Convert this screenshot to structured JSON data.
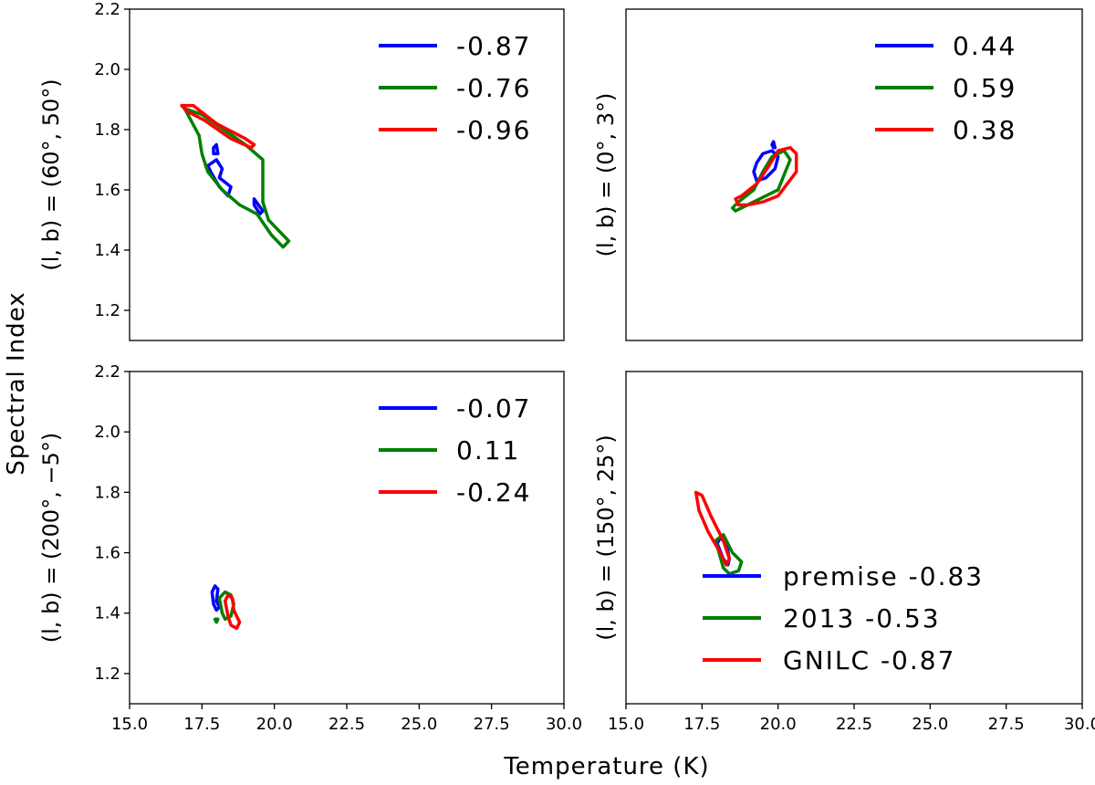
{
  "figure": {
    "xlabel": "Temperature (K)",
    "ylabel": "Spectral Index"
  },
  "colors": {
    "series_1": "#0000ff",
    "series_2": "#008000",
    "series_3": "#ff0000"
  },
  "chart_data": [
    {
      "type": "contour",
      "ylabel": "(l, b) = (60°, 50°)",
      "xlim": [
        15.0,
        30.0
      ],
      "ylim": [
        1.1,
        2.2
      ],
      "xticks": [],
      "yticks": [
        "1.2",
        "1.4",
        "1.6",
        "1.8",
        "2.0",
        "2.2"
      ],
      "legend_position": "top-right",
      "series": [
        {
          "name": "-0.87",
          "color": "#0000ff",
          "contours": [
            [
              [
                17.9,
                1.74
              ],
              [
                18.0,
                1.75
              ],
              [
                18.05,
                1.72
              ],
              [
                17.9,
                1.72
              ],
              [
                17.9,
                1.74
              ]
            ],
            [
              [
                17.7,
                1.68
              ],
              [
                18.0,
                1.7
              ],
              [
                18.2,
                1.67
              ],
              [
                18.1,
                1.64
              ],
              [
                18.5,
                1.61
              ],
              [
                18.4,
                1.58
              ],
              [
                18.1,
                1.61
              ],
              [
                17.8,
                1.66
              ],
              [
                17.7,
                1.68
              ]
            ],
            [
              [
                19.3,
                1.57
              ],
              [
                19.6,
                1.53
              ],
              [
                19.5,
                1.52
              ],
              [
                19.3,
                1.55
              ],
              [
                19.3,
                1.57
              ]
            ]
          ]
        },
        {
          "name": "-0.76",
          "color": "#008000",
          "contours": [
            [
              [
                16.9,
                1.87
              ],
              [
                17.5,
                1.85
              ],
              [
                19.0,
                1.75
              ],
              [
                19.6,
                1.7
              ],
              [
                19.6,
                1.56
              ],
              [
                19.8,
                1.5
              ],
              [
                20.5,
                1.43
              ],
              [
                20.3,
                1.41
              ],
              [
                19.9,
                1.45
              ],
              [
                19.4,
                1.52
              ],
              [
                18.8,
                1.55
              ],
              [
                18.2,
                1.6
              ],
              [
                17.7,
                1.66
              ],
              [
                17.5,
                1.72
              ],
              [
                17.4,
                1.78
              ],
              [
                16.9,
                1.87
              ]
            ]
          ]
        },
        {
          "name": "-0.96",
          "color": "#ff0000",
          "contours": [
            [
              [
                16.8,
                1.88
              ],
              [
                17.2,
                1.88
              ],
              [
                18.0,
                1.82
              ],
              [
                19.0,
                1.77
              ],
              [
                19.3,
                1.75
              ],
              [
                19.2,
                1.74
              ],
              [
                18.5,
                1.77
              ],
              [
                17.6,
                1.83
              ],
              [
                17.0,
                1.86
              ],
              [
                16.8,
                1.88
              ]
            ]
          ]
        }
      ]
    },
    {
      "type": "contour",
      "ylabel": "(l, b) = (0°, 3°)",
      "xlim": [
        15.0,
        30.0
      ],
      "ylim": [
        1.1,
        2.2
      ],
      "xticks": [],
      "yticks": [],
      "legend_position": "top-right",
      "series": [
        {
          "name": "0.44",
          "color": "#0000ff",
          "contours": [
            [
              [
                19.2,
                1.66
              ],
              [
                19.3,
                1.69
              ],
              [
                19.5,
                1.72
              ],
              [
                19.8,
                1.73
              ],
              [
                20.0,
                1.71
              ],
              [
                19.9,
                1.67
              ],
              [
                19.6,
                1.64
              ],
              [
                19.3,
                1.63
              ],
              [
                19.2,
                1.66
              ]
            ],
            [
              [
                19.8,
                1.75
              ],
              [
                19.85,
                1.76
              ],
              [
                19.9,
                1.74
              ],
              [
                19.85,
                1.74
              ],
              [
                19.8,
                1.75
              ]
            ]
          ]
        },
        {
          "name": "0.59",
          "color": "#008000",
          "contours": [
            [
              [
                18.5,
                1.54
              ],
              [
                18.7,
                1.56
              ],
              [
                19.2,
                1.6
              ],
              [
                19.5,
                1.66
              ],
              [
                19.8,
                1.71
              ],
              [
                20.2,
                1.73
              ],
              [
                20.4,
                1.7
              ],
              [
                20.2,
                1.65
              ],
              [
                20.0,
                1.6
              ],
              [
                19.6,
                1.58
              ],
              [
                19.0,
                1.55
              ],
              [
                18.6,
                1.53
              ],
              [
                18.5,
                1.54
              ]
            ]
          ]
        },
        {
          "name": "0.38",
          "color": "#ff0000",
          "contours": [
            [
              [
                18.6,
                1.57
              ],
              [
                18.8,
                1.58
              ],
              [
                19.3,
                1.62
              ],
              [
                19.7,
                1.68
              ],
              [
                20.0,
                1.73
              ],
              [
                20.4,
                1.74
              ],
              [
                20.6,
                1.72
              ],
              [
                20.6,
                1.66
              ],
              [
                20.3,
                1.62
              ],
              [
                20.0,
                1.58
              ],
              [
                19.5,
                1.56
              ],
              [
                19.0,
                1.55
              ],
              [
                18.7,
                1.55
              ],
              [
                18.6,
                1.57
              ]
            ]
          ]
        }
      ]
    },
    {
      "type": "contour",
      "ylabel": "(l, b) = (200°, −5°)",
      "xlim": [
        15.0,
        30.0
      ],
      "ylim": [
        1.1,
        2.2
      ],
      "xticks": [
        "15.0",
        "17.5",
        "20.0",
        "22.5",
        "25.0",
        "27.5",
        "30.0"
      ],
      "yticks": [
        "1.2",
        "1.4",
        "1.6",
        "1.8",
        "2.0",
        "2.2"
      ],
      "legend_position": "top-right",
      "series": [
        {
          "name": "-0.07",
          "color": "#0000ff",
          "contours": [
            [
              [
                17.85,
                1.47
              ],
              [
                17.95,
                1.49
              ],
              [
                18.05,
                1.48
              ],
              [
                18.0,
                1.44
              ],
              [
                18.1,
                1.42
              ],
              [
                18.0,
                1.41
              ],
              [
                17.9,
                1.43
              ],
              [
                17.85,
                1.47
              ]
            ]
          ]
        },
        {
          "name": "0.11",
          "color": "#008000",
          "contours": [
            [
              [
                18.1,
                1.45
              ],
              [
                18.3,
                1.47
              ],
              [
                18.5,
                1.46
              ],
              [
                18.6,
                1.43
              ],
              [
                18.5,
                1.39
              ],
              [
                18.3,
                1.38
              ],
              [
                18.2,
                1.4
              ],
              [
                18.1,
                1.45
              ]
            ],
            [
              [
                17.95,
                1.38
              ],
              [
                18.05,
                1.38
              ],
              [
                18.0,
                1.37
              ],
              [
                17.95,
                1.38
              ]
            ]
          ]
        },
        {
          "name": "-0.24",
          "color": "#ff0000",
          "contours": [
            [
              [
                18.3,
                1.44
              ],
              [
                18.4,
                1.46
              ],
              [
                18.55,
                1.45
              ],
              [
                18.6,
                1.41
              ],
              [
                18.8,
                1.37
              ],
              [
                18.7,
                1.35
              ],
              [
                18.5,
                1.36
              ],
              [
                18.4,
                1.39
              ],
              [
                18.3,
                1.44
              ]
            ]
          ]
        }
      ]
    },
    {
      "type": "contour",
      "ylabel": "(l, b) = (150°, 25°)",
      "xlim": [
        15.0,
        30.0
      ],
      "ylim": [
        1.1,
        2.2
      ],
      "xticks": [
        "15.0",
        "17.5",
        "20.0",
        "22.5",
        "25.0",
        "27.5",
        "30.0"
      ],
      "yticks": [],
      "legend_position": "bottom-right",
      "series": [
        {
          "name": "premise -0.83",
          "color": "#0000ff",
          "contours": [
            [
              [
                18.0,
                1.63
              ],
              [
                18.1,
                1.65
              ],
              [
                18.3,
                1.63
              ],
              [
                18.4,
                1.58
              ],
              [
                18.35,
                1.56
              ],
              [
                18.2,
                1.58
              ],
              [
                18.0,
                1.63
              ]
            ]
          ]
        },
        {
          "name": "2013 -0.53",
          "color": "#008000",
          "contours": [
            [
              [
                17.95,
                1.64
              ],
              [
                18.2,
                1.66
              ],
              [
                18.5,
                1.6
              ],
              [
                18.8,
                1.57
              ],
              [
                18.7,
                1.54
              ],
              [
                18.4,
                1.53
              ],
              [
                18.2,
                1.55
              ],
              [
                17.95,
                1.64
              ]
            ]
          ]
        },
        {
          "name": "GNILC -0.87",
          "color": "#ff0000",
          "contours": [
            [
              [
                17.3,
                1.8
              ],
              [
                17.5,
                1.79
              ],
              [
                17.8,
                1.72
              ],
              [
                18.2,
                1.64
              ],
              [
                18.4,
                1.58
              ],
              [
                18.3,
                1.56
              ],
              [
                18.1,
                1.6
              ],
              [
                17.7,
                1.67
              ],
              [
                17.4,
                1.74
              ],
              [
                17.3,
                1.8
              ]
            ]
          ]
        }
      ]
    }
  ]
}
